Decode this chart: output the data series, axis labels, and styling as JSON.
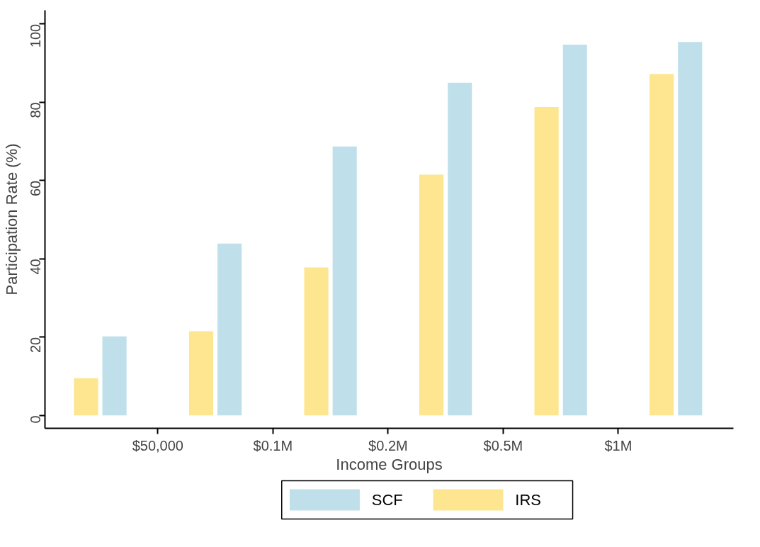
{
  "chart_data": {
    "type": "bar",
    "xlabel": "Income Groups",
    "ylabel": "Participation Rate (%)",
    "categories": [
      null,
      "$50,000",
      null,
      "$0.1M",
      null,
      "$0.2M",
      null,
      "$0.5M",
      null,
      "$1M",
      null
    ],
    "ylim": [
      -3.3,
      103.5
    ],
    "yticks": [
      0,
      20,
      40,
      60,
      80,
      100
    ],
    "grid": false,
    "legend": "bottom",
    "series": [
      {
        "name": "SCF",
        "color": "#bfe0ea",
        "values": [
          20.2,
          null,
          43.9,
          null,
          68.7,
          null,
          85.0,
          null,
          94.7,
          null,
          95.4
        ]
      },
      {
        "name": "IRS",
        "color": "#fde68f",
        "values": [
          9.5,
          null,
          21.5,
          null,
          37.8,
          null,
          61.5,
          null,
          78.8,
          null,
          87.2
        ]
      }
    ]
  }
}
